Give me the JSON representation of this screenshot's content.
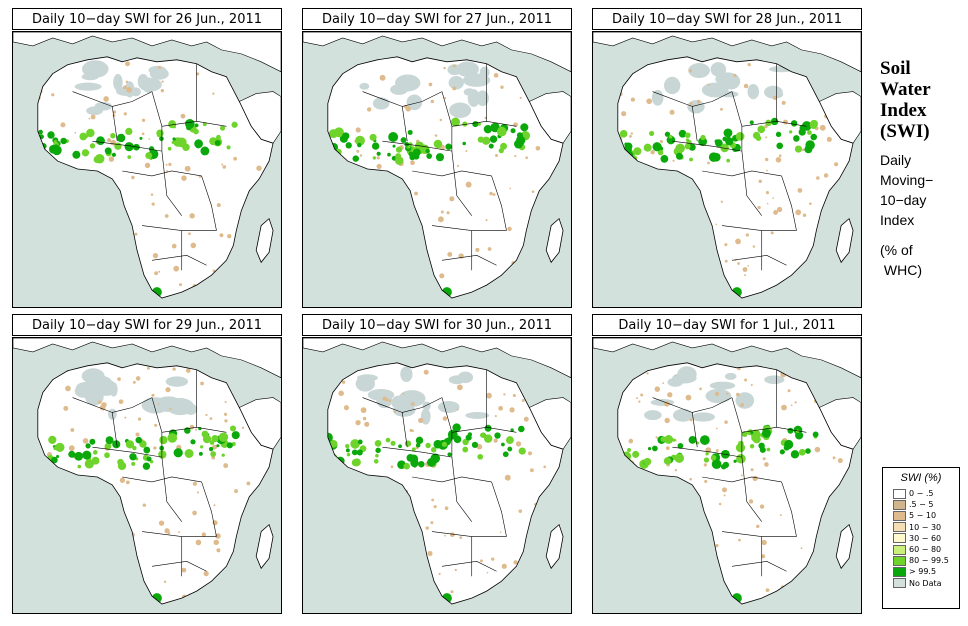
{
  "panels": [
    {
      "title": "Daily 10−day SWI for  26 Jun., 2011"
    },
    {
      "title": "Daily 10−day SWI for  27 Jun., 2011"
    },
    {
      "title": "Daily 10−day SWI for  28 Jun., 2011"
    },
    {
      "title": "Daily 10−day SWI for  29 Jun., 2011"
    },
    {
      "title": "Daily 10−day SWI for  30 Jun., 2011"
    },
    {
      "title": "Daily 10−day SWI for  1 Jul., 2011"
    }
  ],
  "side": {
    "title_line1": "Soil",
    "title_line2": "Water",
    "title_line3": "Index",
    "title_line4": "(SWI)",
    "desc_line1": "Daily",
    "desc_line2": "Moving−",
    "desc_line3": "10−day",
    "desc_line4": "Index",
    "unit_line1": "(% of",
    "unit_line2": " WHC)"
  },
  "legend": {
    "title": "SWI (%)",
    "items": [
      {
        "label": "0 − .5",
        "color": "#ffffff"
      },
      {
        "label": ".5 − 5",
        "color": "#d2b48c"
      },
      {
        "label": "5 − 10",
        "color": "#deba8c"
      },
      {
        "label": "10 − 30",
        "color": "#f5deb3"
      },
      {
        "label": "30 − 60",
        "color": "#fffacd"
      },
      {
        "label": "60 − 80",
        "color": "#c8f07a"
      },
      {
        "label": "80 − 99.5",
        "color": "#6ed42b"
      },
      {
        "label": "> 99.5",
        "color": "#0aa80a"
      },
      {
        "label": "No Data",
        "color": "#d2e1dc"
      }
    ]
  },
  "colors": {
    "ocean": "#d2e1dc",
    "land": "#ffffff",
    "dry": "#deba8c",
    "green": "#6ed42b",
    "darkgreen": "#0aa80a",
    "nodata": "#c9d6d6"
  }
}
